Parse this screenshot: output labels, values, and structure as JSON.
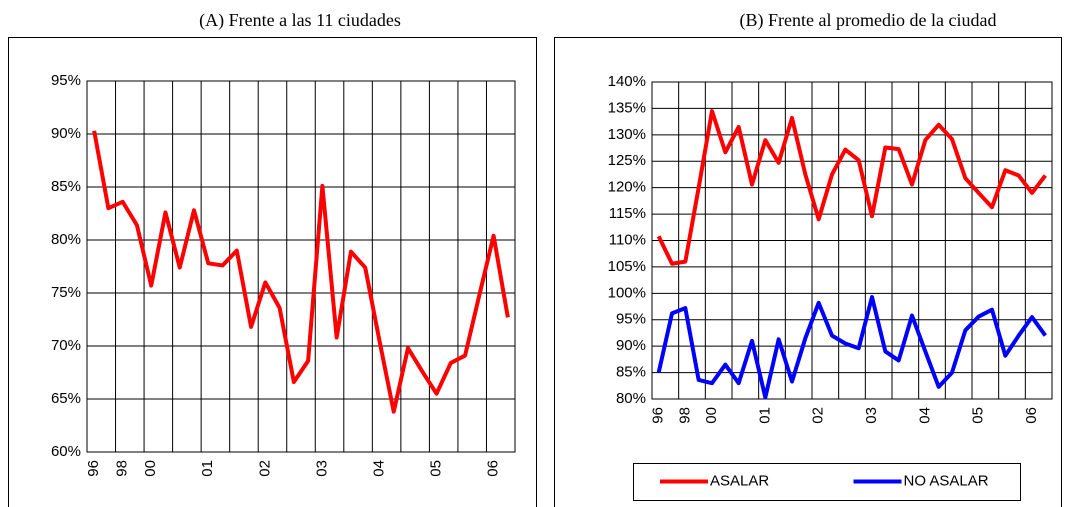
{
  "chart_data": [
    {
      "type": "line",
      "title": "(A) Frente a las 11 ciudades",
      "categories": [
        "96",
        null,
        "98",
        null,
        "00",
        null,
        null,
        null,
        "01",
        null,
        null,
        null,
        "02",
        null,
        null,
        null,
        "03",
        null,
        null,
        null,
        "04",
        null,
        null,
        null,
        "05",
        null,
        null,
        null,
        "06",
        null
      ],
      "values": [
        90.3,
        83.0,
        83.6,
        81.4,
        75.7,
        82.6,
        77.4,
        82.8,
        77.8,
        77.6,
        79.0,
        71.8,
        76.0,
        73.6,
        66.6,
        68.6,
        85.1,
        70.8,
        78.9,
        77.4,
        70.5,
        63.8,
        69.8,
        67.6,
        65.5,
        68.4,
        69.1,
        74.8,
        80.4,
        72.7
      ],
      "color": "#ff0000",
      "ylim": [
        60,
        95
      ],
      "yticks": [
        {
          "value": 60,
          "label": "60%"
        },
        {
          "value": 65,
          "label": "65%"
        },
        {
          "value": 70,
          "label": "70%"
        },
        {
          "value": 75,
          "label": "75%"
        },
        {
          "value": 80,
          "label": "80%"
        },
        {
          "value": 85,
          "label": "85%"
        },
        {
          "value": 90,
          "label": "90%"
        },
        {
          "value": 95,
          "label": "95%"
        }
      ],
      "grid": true
    },
    {
      "type": "line",
      "title": "(B) Frente al promedio de la ciudad",
      "categories": [
        "96",
        null,
        "98",
        null,
        "00",
        null,
        null,
        null,
        "01",
        null,
        null,
        null,
        "02",
        null,
        null,
        null,
        "03",
        null,
        null,
        null,
        "04",
        null,
        null,
        null,
        "05",
        null,
        null,
        null,
        "06",
        null
      ],
      "series": [
        {
          "name": "ASALAR",
          "color": "#ff0000",
          "values": [
            110.8,
            105.6,
            106.0,
            120.0,
            134.5,
            126.7,
            131.5,
            120.6,
            129.0,
            124.7,
            133.2,
            122.5,
            114.0,
            122.5,
            127.2,
            125.2,
            114.6,
            127.6,
            127.3,
            120.6,
            129.0,
            131.9,
            129.2,
            121.8,
            119.0,
            116.3,
            123.3,
            122.3,
            119.0,
            122.3
          ]
        },
        {
          "name": "NO ASALAR",
          "color": "#0000ff",
          "values": [
            85.0,
            96.2,
            97.2,
            83.6,
            83.0,
            86.5,
            83.0,
            91.0,
            80.3,
            91.3,
            83.3,
            91.5,
            98.2,
            92.0,
            90.5,
            89.6,
            99.3,
            89.0,
            87.3,
            95.8,
            89.0,
            82.3,
            85.0,
            93.0,
            95.6,
            96.9,
            88.2,
            92.0,
            95.5,
            92.0
          ]
        }
      ],
      "ylim": [
        80,
        140
      ],
      "yticks": [
        {
          "value": 80,
          "label": "80%"
        },
        {
          "value": 85,
          "label": "85%"
        },
        {
          "value": 90,
          "label": "90%"
        },
        {
          "value": 95,
          "label": "95%"
        },
        {
          "value": 100,
          "label": "100%"
        },
        {
          "value": 105,
          "label": "105%"
        },
        {
          "value": 110,
          "label": "110%"
        },
        {
          "value": 115,
          "label": "115%"
        },
        {
          "value": 120,
          "label": "120%"
        },
        {
          "value": 125,
          "label": "125%"
        },
        {
          "value": 130,
          "label": "130%"
        },
        {
          "value": 135,
          "label": "135%"
        },
        {
          "value": 140,
          "label": "140%"
        }
      ],
      "grid": true,
      "legend": "bottom"
    }
  ]
}
